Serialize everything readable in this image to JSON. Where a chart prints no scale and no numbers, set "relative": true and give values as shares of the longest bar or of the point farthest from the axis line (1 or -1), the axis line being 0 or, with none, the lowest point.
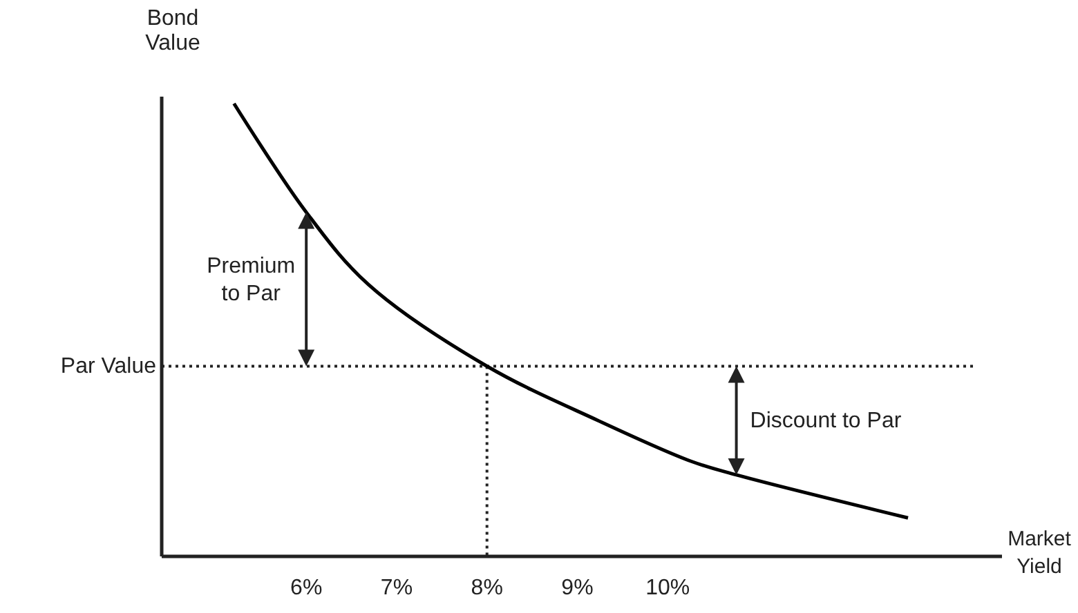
{
  "chart_data": {
    "type": "line",
    "relative": true,
    "xlabel": "Market Yield",
    "ylabel": "Bond Value",
    "x": [
      5.2,
      6.0,
      6.69,
      8.0,
      9.23,
      10.26,
      10.76,
      12.66
    ],
    "series": [
      {
        "color": "#000000",
        "values": [
          1.0,
          0.76,
          0.6,
          0.42,
          0.3,
          0.21,
          0.18,
          0.085
        ]
      }
    ],
    "xlim": [
      4.4,
      13.7
    ],
    "xticks": [
      {
        "value": 6,
        "label": "6%"
      },
      {
        "value": 7,
        "label": "7%"
      },
      {
        "value": 8,
        "label": "8%"
      },
      {
        "value": 9,
        "label": "9%"
      },
      {
        "value": 10,
        "label": "10%"
      }
    ],
    "tick_labels": "x",
    "grid": false,
    "marker": "none",
    "line_style": "solid",
    "ref_lines": [
      {
        "axis": "y",
        "value": 0.42,
        "label": "Par Value",
        "line_style": "dotted"
      },
      {
        "axis": "x",
        "value": 8,
        "label": null,
        "line_style": "dotted"
      }
    ],
    "annotations": [
      {
        "text": "Premium to Par",
        "x": 6.0,
        "y": 0.76
      },
      {
        "text": "Discount to Par",
        "x": 10.76,
        "y": 0.18
      }
    ]
  }
}
